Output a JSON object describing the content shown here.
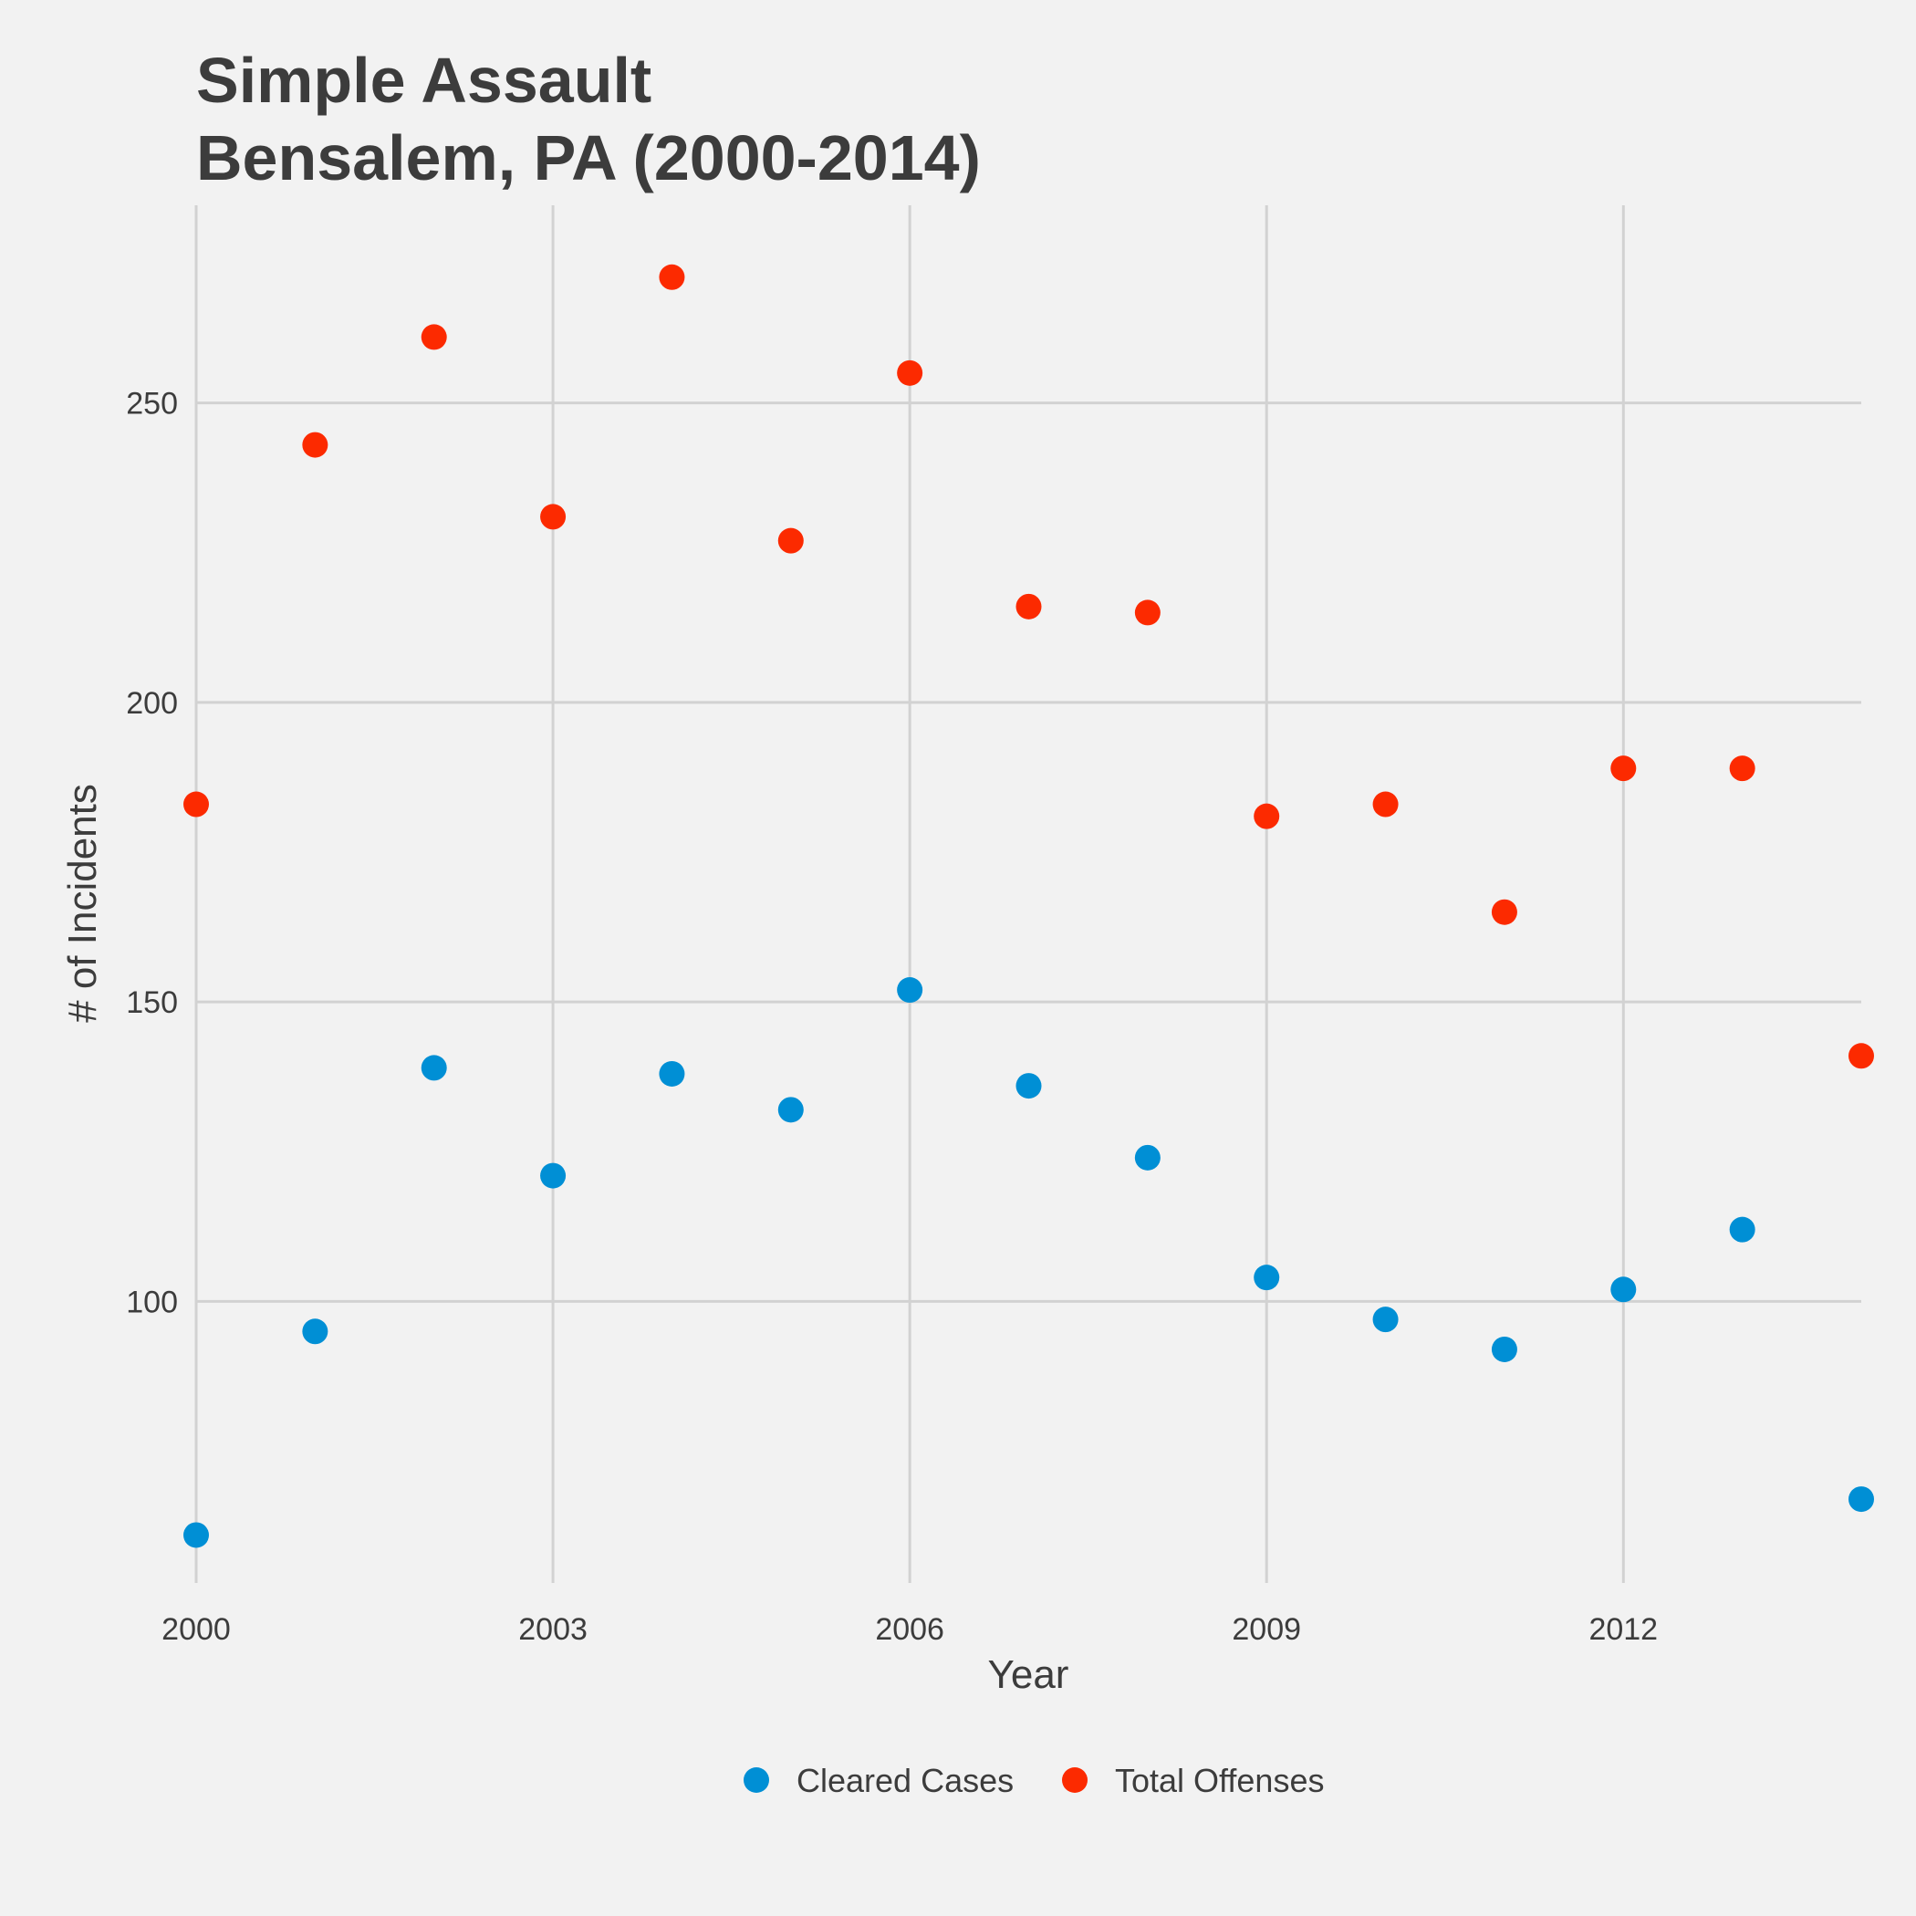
{
  "chart_data": {
    "type": "scatter",
    "title": [
      "Simple Assault",
      "Bensalem, PA (2000-2014)"
    ],
    "xlabel": "Year",
    "ylabel": "# of Incidents",
    "x": [
      2000,
      2001,
      2002,
      2003,
      2004,
      2005,
      2006,
      2007,
      2008,
      2009,
      2010,
      2011,
      2012,
      2013,
      2014
    ],
    "xlim": [
      2000,
      2014
    ],
    "ylim": [
      53,
      283
    ],
    "x_ticks": [
      2000,
      2003,
      2006,
      2009,
      2012
    ],
    "y_ticks": [
      100,
      150,
      200,
      250
    ],
    "grid": true,
    "legend_position": "bottom",
    "series": [
      {
        "name": "Cleared Cases",
        "color": "#008fd5",
        "values": [
          61,
          95,
          139,
          121,
          138,
          132,
          152,
          136,
          124,
          104,
          97,
          92,
          102,
          112,
          67
        ]
      },
      {
        "name": "Total Offenses",
        "color": "#fc2a00",
        "values": [
          183,
          243,
          261,
          231,
          271,
          227,
          255,
          216,
          215,
          181,
          183,
          165,
          189,
          189,
          141
        ]
      }
    ]
  }
}
